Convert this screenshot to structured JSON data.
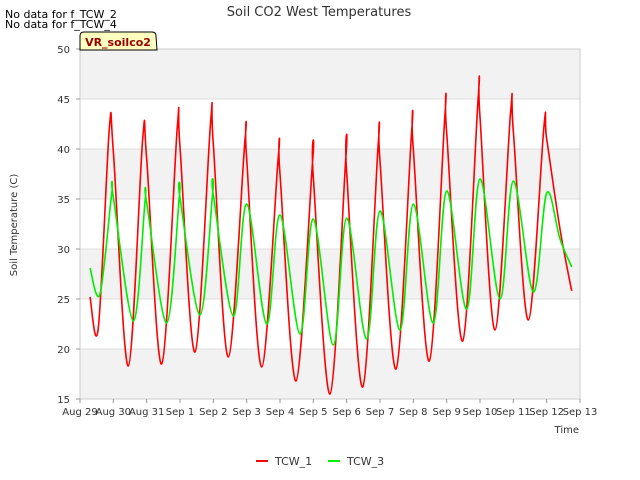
{
  "notes": [
    "No data for f_TCW_2",
    "No data for f_TCW_4"
  ],
  "chart_data": {
    "type": "line",
    "title": "Soil CO2 West Temperatures",
    "xlabel": "Time",
    "ylabel": "Soil Temperature (C)",
    "badge": "VR_soilco2",
    "ylim": [
      15,
      50
    ],
    "yticks": [
      15,
      20,
      25,
      30,
      35,
      40,
      45,
      50
    ],
    "xlim": [
      0,
      15
    ],
    "xtick_labels": [
      "Aug 29",
      "Aug 30",
      "Aug 31",
      "Sep 1",
      "Sep 2",
      "Sep 3",
      "Sep 4",
      "Sep 5",
      "Sep 6",
      "Sep 7",
      "Sep 8",
      "Sep 9",
      "Sep 10",
      "Sep 11",
      "Sep 12",
      "Sep 13"
    ],
    "grid": "alternating horizontal bands",
    "legend_position": "bottom-center",
    "series": [
      {
        "name": "TCW_1",
        "color": "#ff0000",
        "x": [
          0.3,
          0.55,
          0.88,
          1.0,
          1.45,
          1.88,
          2.0,
          2.45,
          2.92,
          3.0,
          3.45,
          3.92,
          4.0,
          4.45,
          4.95,
          5.0,
          5.45,
          5.95,
          6.0,
          6.48,
          6.98,
          7.0,
          7.5,
          7.98,
          8.0,
          8.48,
          8.95,
          9.0,
          9.48,
          9.95,
          10.0,
          10.48,
          10.95,
          11.0,
          11.48,
          11.95,
          12.0,
          12.45,
          12.92,
          13.0,
          13.45,
          13.92,
          14.0,
          14.4,
          14.75
        ],
        "y": [
          25.2,
          22.1,
          42.0,
          39.8,
          18.3,
          41.0,
          39.0,
          18.5,
          42.2,
          40.2,
          19.7,
          42.8,
          40.5,
          19.2,
          40.9,
          39.0,
          18.2,
          39.2,
          37.5,
          16.8,
          38.9,
          37.2,
          15.5,
          39.4,
          37.6,
          16.2,
          40.6,
          38.8,
          18.0,
          41.8,
          40.0,
          18.8,
          43.5,
          41.6,
          20.8,
          45.3,
          43.2,
          21.9,
          43.8,
          41.8,
          22.9,
          42.3,
          41.0,
          32.0,
          25.8
        ]
      },
      {
        "name": "TCW_3",
        "color": "#00ee00",
        "x": [
          0.3,
          0.6,
          0.95,
          1.0,
          1.6,
          1.95,
          2.0,
          2.6,
          2.98,
          3.0,
          3.6,
          3.98,
          4.0,
          4.6,
          5.0,
          5.6,
          6.0,
          6.6,
          7.0,
          7.6,
          8.0,
          8.6,
          9.0,
          9.6,
          10.0,
          10.6,
          11.0,
          11.6,
          12.0,
          12.6,
          13.0,
          13.6,
          14.0,
          14.4,
          14.75
        ],
        "y": [
          28.1,
          25.5,
          35.5,
          35.2,
          22.8,
          34.7,
          34.6,
          22.6,
          35.2,
          35.1,
          23.4,
          35.6,
          35.4,
          23.3,
          34.5,
          22.5,
          33.4,
          21.5,
          33.0,
          20.4,
          33.1,
          21.0,
          33.8,
          21.9,
          34.5,
          22.6,
          35.8,
          24.0,
          37.0,
          25.0,
          36.8,
          25.7,
          35.6,
          31.0,
          28.2
        ]
      }
    ]
  }
}
